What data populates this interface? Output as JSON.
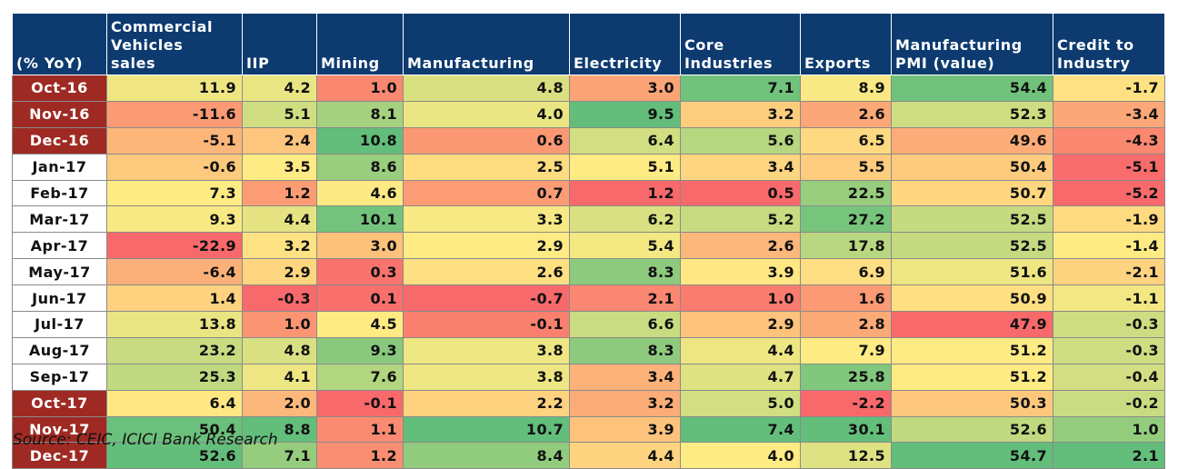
{
  "chart_data": {
    "type": "table",
    "title": "",
    "corner_label": "(% YoY)",
    "columns": [
      "Commercial Vehicles sales",
      "IIP",
      "Mining",
      "Manufacturing",
      "Electricity",
      "Core Industries",
      "Exports",
      "Manufacturing PMI (value)",
      "Credit to Industry"
    ],
    "column_header_lines": [
      [
        "Commercial",
        "Vehicles",
        "sales"
      ],
      [
        "IIP"
      ],
      [
        "Mining"
      ],
      [
        "Manufacturing"
      ],
      [
        "Electricity"
      ],
      [
        "Core",
        "Industries"
      ],
      [
        "Exports"
      ],
      [
        "Manufacturing",
        "PMI (value)"
      ],
      [
        "Credit to",
        "Industry"
      ]
    ],
    "rows": [
      {
        "label": "Oct-16",
        "values": [
          "11.9",
          "4.2",
          "1.0",
          "4.8",
          "3.0",
          "7.1",
          "8.9",
          "54.4",
          "-1.7"
        ]
      },
      {
        "label": "Nov-16",
        "values": [
          "-11.6",
          "5.1",
          "8.1",
          "4.0",
          "9.5",
          "3.2",
          "2.6",
          "52.3",
          "-3.4"
        ]
      },
      {
        "label": "Dec-16",
        "values": [
          "-5.1",
          "2.4",
          "10.8",
          "0.6",
          "6.4",
          "5.6",
          "6.5",
          "49.6",
          "-4.3"
        ]
      },
      {
        "label": "Jan-17",
        "values": [
          "-0.6",
          "3.5",
          "8.6",
          "2.5",
          "5.1",
          "3.4",
          "5.5",
          "50.4",
          "-5.1"
        ]
      },
      {
        "label": "Feb-17",
        "values": [
          "7.3",
          "1.2",
          "4.6",
          "0.7",
          "1.2",
          "0.5",
          "22.5",
          "50.7",
          "-5.2"
        ]
      },
      {
        "label": "Mar-17",
        "values": [
          "9.3",
          "4.4",
          "10.1",
          "3.3",
          "6.2",
          "5.2",
          "27.2",
          "52.5",
          "-1.9"
        ]
      },
      {
        "label": "Apr-17",
        "values": [
          "-22.9",
          "3.2",
          "3.0",
          "2.9",
          "5.4",
          "2.6",
          "17.8",
          "52.5",
          "-1.4"
        ]
      },
      {
        "label": "May-17",
        "values": [
          "-6.4",
          "2.9",
          "0.3",
          "2.6",
          "8.3",
          "3.9",
          "6.9",
          "51.6",
          "-2.1"
        ]
      },
      {
        "label": "Jun-17",
        "values": [
          "1.4",
          "-0.3",
          "0.1",
          "-0.7",
          "2.1",
          "1.0",
          "1.6",
          "50.9",
          "-1.1"
        ]
      },
      {
        "label": "Jul-17",
        "values": [
          "13.8",
          "1.0",
          "4.5",
          "-0.1",
          "6.6",
          "2.9",
          "2.8",
          "47.9",
          "-0.3"
        ]
      },
      {
        "label": "Aug-17",
        "values": [
          "23.2",
          "4.8",
          "9.3",
          "3.8",
          "8.3",
          "4.4",
          "7.9",
          "51.2",
          "-0.3"
        ]
      },
      {
        "label": "Sep-17",
        "values": [
          "25.3",
          "4.1",
          "7.6",
          "3.8",
          "3.4",
          "4.7",
          "25.8",
          "51.2",
          "-0.4"
        ]
      },
      {
        "label": "Oct-17",
        "values": [
          "6.4",
          "2.0",
          "-0.1",
          "2.2",
          "3.2",
          "5.0",
          "-2.2",
          "50.3",
          "-0.2"
        ]
      },
      {
        "label": "Nov-17",
        "values": [
          "50.4",
          "8.8",
          "1.1",
          "10.7",
          "3.9",
          "7.4",
          "30.1",
          "52.6",
          "1.0"
        ]
      },
      {
        "label": "Dec-17",
        "values": [
          "52.6",
          "7.1",
          "1.2",
          "8.4",
          "4.4",
          "4.0",
          "12.5",
          "54.7",
          "2.1"
        ]
      }
    ],
    "row_label_colors": [
      "#9e2a23",
      "#9e2a23",
      "#9e2a23",
      "#ffffff",
      "#ffffff",
      "#ffffff",
      "#ffffff",
      "#ffffff",
      "#ffffff",
      "#ffffff",
      "#ffffff",
      "#ffffff",
      "#9e2a23",
      "#9e2a23",
      "#9e2a23"
    ],
    "color_scale": {
      "low": "#f8696b",
      "mid": "#ffeb84",
      "high": "#63be7b",
      "method": "per-column color scale"
    }
  },
  "source": "Source: CEIC, ICICI Bank Research"
}
